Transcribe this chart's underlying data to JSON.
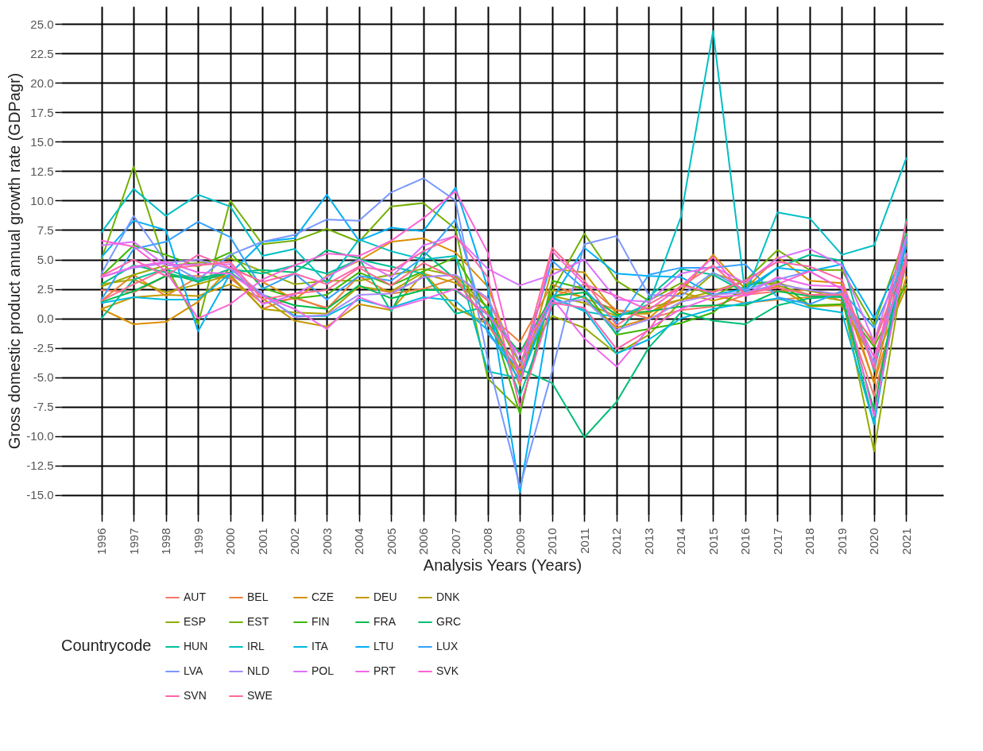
{
  "chart_data": {
    "type": "line",
    "xlabel": "Analysis Years (Years)",
    "ylabel": "Gross domestic product annual growth rate (GDPagr)",
    "legend_title": "Countrycode",
    "legend": "bottom",
    "grid": true,
    "marker": "none",
    "line_style": "solid",
    "x": [
      1996,
      1997,
      1998,
      1999,
      2000,
      2001,
      2002,
      2003,
      2004,
      2005,
      2006,
      2007,
      2008,
      2009,
      2010,
      2011,
      2012,
      2013,
      2014,
      2015,
      2016,
      2017,
      2018,
      2019,
      2020,
      2021
    ],
    "xlim": [
      1994.75,
      2022.15
    ],
    "xticks": [
      1996,
      1997,
      1998,
      1999,
      2000,
      2001,
      2002,
      2003,
      2004,
      2005,
      2006,
      2007,
      2008,
      2009,
      2010,
      2011,
      2012,
      2013,
      2014,
      2015,
      2016,
      2017,
      2018,
      2019,
      2020,
      2021
    ],
    "ylim": [
      -16.7,
      26.5
    ],
    "yticks": [
      {
        "value": -15,
        "label": "-15.0"
      },
      {
        "value": -12.5,
        "label": "-12.5"
      },
      {
        "value": -10,
        "label": "-10.0"
      },
      {
        "value": -7.5,
        "label": "-7.5"
      },
      {
        "value": -5,
        "label": "-5.0"
      },
      {
        "value": -2.5,
        "label": "-2.5"
      },
      {
        "value": 0,
        "label": "0.0"
      },
      {
        "value": 2.5,
        "label": "2.5"
      },
      {
        "value": 5,
        "label": "5.0"
      },
      {
        "value": 7.5,
        "label": "7.5"
      },
      {
        "value": 10,
        "label": "10.0"
      },
      {
        "value": 12.5,
        "label": "12.5"
      },
      {
        "value": 15,
        "label": "15.0"
      },
      {
        "value": 17.5,
        "label": "17.5"
      },
      {
        "value": 20,
        "label": "20.0"
      },
      {
        "value": 22.5,
        "label": "22.5"
      },
      {
        "value": 25,
        "label": "25.0"
      }
    ],
    "series": [
      {
        "name": "AUT",
        "color": "#f8766d",
        "values": [
          2.4,
          2.2,
          3.6,
          3.6,
          3.4,
          1.3,
          1.7,
          0.9,
          2.7,
          2.2,
          3.5,
          3.7,
          1.5,
          -3.8,
          1.8,
          2.9,
          0.7,
          0.0,
          0.7,
          1.0,
          2.0,
          2.3,
          2.4,
          1.5,
          -6.6,
          4.6
        ]
      },
      {
        "name": "BEL",
        "color": "#ec8239",
        "values": [
          1.5,
          3.7,
          1.9,
          3.5,
          3.6,
          0.8,
          1.8,
          0.8,
          3.6,
          2.1,
          2.5,
          3.4,
          0.4,
          -2.0,
          2.9,
          1.7,
          0.7,
          0.5,
          1.6,
          2.0,
          1.3,
          1.6,
          1.8,
          2.2,
          -5.4,
          6.3
        ]
      },
      {
        "name": "CZE",
        "color": "#db8e00",
        "values": [
          0.8,
          -0.5,
          -0.3,
          1.4,
          4.3,
          3.1,
          1.6,
          3.6,
          4.9,
          6.5,
          6.8,
          5.6,
          2.7,
          -4.7,
          2.4,
          1.8,
          -0.8,
          0.0,
          2.3,
          5.4,
          2.5,
          5.2,
          3.2,
          3.0,
          -5.5,
          3.5
        ]
      },
      {
        "name": "DEU",
        "color": "#c79800",
        "values": [
          0.8,
          1.8,
          2.0,
          1.9,
          2.9,
          1.7,
          -0.2,
          -0.7,
          1.2,
          0.7,
          3.8,
          3.0,
          1.0,
          -5.7,
          4.2,
          3.9,
          0.4,
          0.4,
          2.2,
          1.5,
          2.2,
          2.7,
          1.0,
          1.1,
          -3.7,
          2.6
        ]
      },
      {
        "name": "DNK",
        "color": "#afa200",
        "values": [
          2.9,
          3.3,
          2.2,
          2.9,
          3.7,
          0.8,
          0.5,
          0.4,
          2.7,
          2.3,
          3.9,
          0.9,
          -0.5,
          -4.9,
          1.9,
          1.3,
          0.2,
          0.9,
          1.6,
          2.3,
          3.2,
          2.8,
          2.0,
          1.5,
          -2.0,
          4.9
        ]
      },
      {
        "name": "ESP",
        "color": "#94aa00",
        "values": [
          2.7,
          3.7,
          4.5,
          4.7,
          5.1,
          4.0,
          2.9,
          3.2,
          3.2,
          3.7,
          4.2,
          3.6,
          0.9,
          -3.8,
          0.2,
          -0.8,
          -3.0,
          -1.4,
          1.4,
          3.8,
          3.0,
          3.0,
          2.3,
          2.0,
          -11.3,
          5.5
        ]
      },
      {
        "name": "EST",
        "color": "#72b000",
        "values": [
          5.0,
          12.9,
          4.5,
          -0.5,
          10.0,
          6.3,
          6.6,
          7.6,
          6.5,
          9.5,
          9.8,
          7.6,
          -5.1,
          -7.8,
          2.3,
          7.2,
          3.2,
          1.5,
          3.0,
          1.9,
          3.2,
          5.8,
          4.1,
          4.1,
          -0.6,
          7.2
        ]
      },
      {
        "name": "FIN",
        "color": "#3db600",
        "values": [
          3.6,
          6.2,
          5.4,
          4.4,
          5.6,
          2.6,
          1.7,
          2.0,
          3.9,
          2.8,
          4.0,
          5.2,
          0.7,
          -8.1,
          3.2,
          2.5,
          -1.4,
          -0.9,
          -0.4,
          0.5,
          2.8,
          3.2,
          1.1,
          1.2,
          -2.4,
          2.9
        ]
      },
      {
        "name": "FRA",
        "color": "#00bb4e",
        "values": [
          1.4,
          2.3,
          3.6,
          3.4,
          3.9,
          2.0,
          1.1,
          0.8,
          2.8,
          1.7,
          2.4,
          2.4,
          0.3,
          -2.9,
          1.9,
          2.2,
          0.3,
          0.6,
          1.0,
          1.1,
          1.1,
          2.3,
          1.9,
          1.8,
          -7.8,
          6.8
        ]
      },
      {
        "name": "GRC",
        "color": "#00be76",
        "values": [
          2.9,
          4.5,
          3.9,
          3.1,
          3.9,
          4.1,
          3.9,
          5.8,
          5.1,
          0.6,
          5.7,
          3.3,
          -0.3,
          -4.3,
          -5.5,
          -10.1,
          -7.1,
          -2.5,
          0.5,
          -0.2,
          -0.5,
          1.1,
          1.7,
          1.9,
          -9.0,
          8.4
        ]
      },
      {
        "name": "HUN",
        "color": "#00c09a",
        "values": [
          0.0,
          3.3,
          4.2,
          3.2,
          4.2,
          3.8,
          4.5,
          3.8,
          5.0,
          4.4,
          3.8,
          0.4,
          1.0,
          -6.6,
          1.1,
          1.9,
          -1.3,
          1.8,
          4.2,
          3.7,
          2.2,
          4.3,
          5.4,
          4.9,
          -4.5,
          7.1
        ]
      },
      {
        "name": "IRL",
        "color": "#00bfc4",
        "values": [
          7.3,
          11.0,
          8.7,
          10.5,
          9.5,
          5.3,
          5.9,
          3.0,
          6.7,
          5.7,
          5.0,
          5.3,
          -4.5,
          -5.1,
          1.8,
          0.6,
          0.1,
          1.2,
          8.6,
          24.4,
          2.0,
          9.0,
          8.5,
          5.4,
          6.2,
          13.6
        ]
      },
      {
        "name": "ITA",
        "color": "#00bae0",
        "values": [
          1.3,
          1.8,
          1.6,
          1.6,
          3.8,
          2.0,
          0.2,
          0.2,
          1.6,
          0.9,
          1.8,
          1.5,
          -1.0,
          -5.3,
          1.7,
          0.7,
          -3.0,
          -1.8,
          0.0,
          0.8,
          1.3,
          1.7,
          0.9,
          0.5,
          -9.0,
          6.6
        ]
      },
      {
        "name": "LTU",
        "color": "#00b0f6",
        "values": [
          5.2,
          8.3,
          7.5,
          -1.1,
          3.8,
          6.5,
          6.8,
          10.5,
          6.6,
          7.7,
          7.4,
          11.1,
          2.6,
          -14.8,
          1.6,
          6.0,
          3.8,
          3.6,
          3.5,
          2.0,
          2.5,
          4.3,
          4.0,
          4.6,
          0.0,
          6.0
        ]
      },
      {
        "name": "LUX",
        "color": "#35a2ff",
        "values": [
          1.6,
          5.9,
          6.5,
          8.2,
          6.9,
          2.5,
          3.8,
          1.6,
          3.6,
          3.2,
          5.2,
          8.4,
          -1.3,
          -4.4,
          4.9,
          2.5,
          -0.4,
          3.7,
          4.3,
          4.3,
          4.6,
          1.8,
          1.2,
          2.3,
          -0.8,
          5.1
        ]
      },
      {
        "name": "LVA",
        "color": "#7997ff",
        "values": [
          3.8,
          8.7,
          4.8,
          3.3,
          5.4,
          6.5,
          7.1,
          8.4,
          8.3,
          10.7,
          11.9,
          10.0,
          -3.5,
          -14.3,
          -4.5,
          6.3,
          7.0,
          2.0,
          1.9,
          3.9,
          2.4,
          3.3,
          4.0,
          2.5,
          -3.8,
          6.7
        ]
      },
      {
        "name": "NLD",
        "color": "#a88bff",
        "values": [
          3.5,
          4.3,
          4.7,
          5.0,
          4.2,
          2.1,
          0.1,
          0.3,
          2.0,
          2.1,
          3.5,
          3.7,
          1.7,
          -3.7,
          1.3,
          1.6,
          -1.0,
          -0.1,
          1.4,
          2.0,
          2.2,
          2.9,
          2.4,
          2.0,
          -3.9,
          4.9
        ]
      },
      {
        "name": "POL",
        "color": "#db72fb",
        "values": [
          6.2,
          6.5,
          4.5,
          4.6,
          4.6,
          1.2,
          2.0,
          3.5,
          5.0,
          3.5,
          6.2,
          7.0,
          4.2,
          2.8,
          3.7,
          5.0,
          1.6,
          1.4,
          3.8,
          4.4,
          3.0,
          5.1,
          5.9,
          4.5,
          -2.0,
          6.9
        ]
      },
      {
        "name": "PRT",
        "color": "#ef67eb",
        "values": [
          3.5,
          4.4,
          4.8,
          3.9,
          3.8,
          1.9,
          0.8,
          -0.9,
          1.8,
          0.8,
          1.6,
          2.5,
          0.3,
          -3.1,
          1.7,
          -1.7,
          -4.1,
          -0.9,
          0.8,
          1.8,
          2.0,
          3.5,
          2.8,
          2.7,
          -8.3,
          5.5
        ]
      },
      {
        "name": "SVK",
        "color": "#fc61d5",
        "values": [
          6.6,
          6.1,
          4.0,
          0.0,
          1.2,
          3.3,
          4.5,
          5.5,
          5.3,
          6.6,
          8.5,
          10.8,
          5.6,
          -5.5,
          5.7,
          2.9,
          1.9,
          0.7,
          2.7,
          5.2,
          1.9,
          2.9,
          4.0,
          2.5,
          -3.3,
          4.8
        ]
      },
      {
        "name": "SVN",
        "color": "#ff65ac",
        "values": [
          3.6,
          5.0,
          3.6,
          5.4,
          4.3,
          3.1,
          3.8,
          2.9,
          4.4,
          4.0,
          5.7,
          7.0,
          3.5,
          -7.5,
          1.3,
          0.9,
          -2.6,
          -1.0,
          2.8,
          2.2,
          3.2,
          4.8,
          4.4,
          3.3,
          -4.3,
          8.2
        ]
      },
      {
        "name": "SWE",
        "color": "#ff6c91",
        "values": [
          1.5,
          2.9,
          4.2,
          4.5,
          4.8,
          1.6,
          2.1,
          2.4,
          4.3,
          2.8,
          4.7,
          3.4,
          -0.5,
          -4.3,
          6.0,
          3.2,
          -0.6,
          1.2,
          2.7,
          4.5,
          2.1,
          2.6,
          2.0,
          2.0,
          -2.2,
          5.1
        ]
      }
    ]
  }
}
